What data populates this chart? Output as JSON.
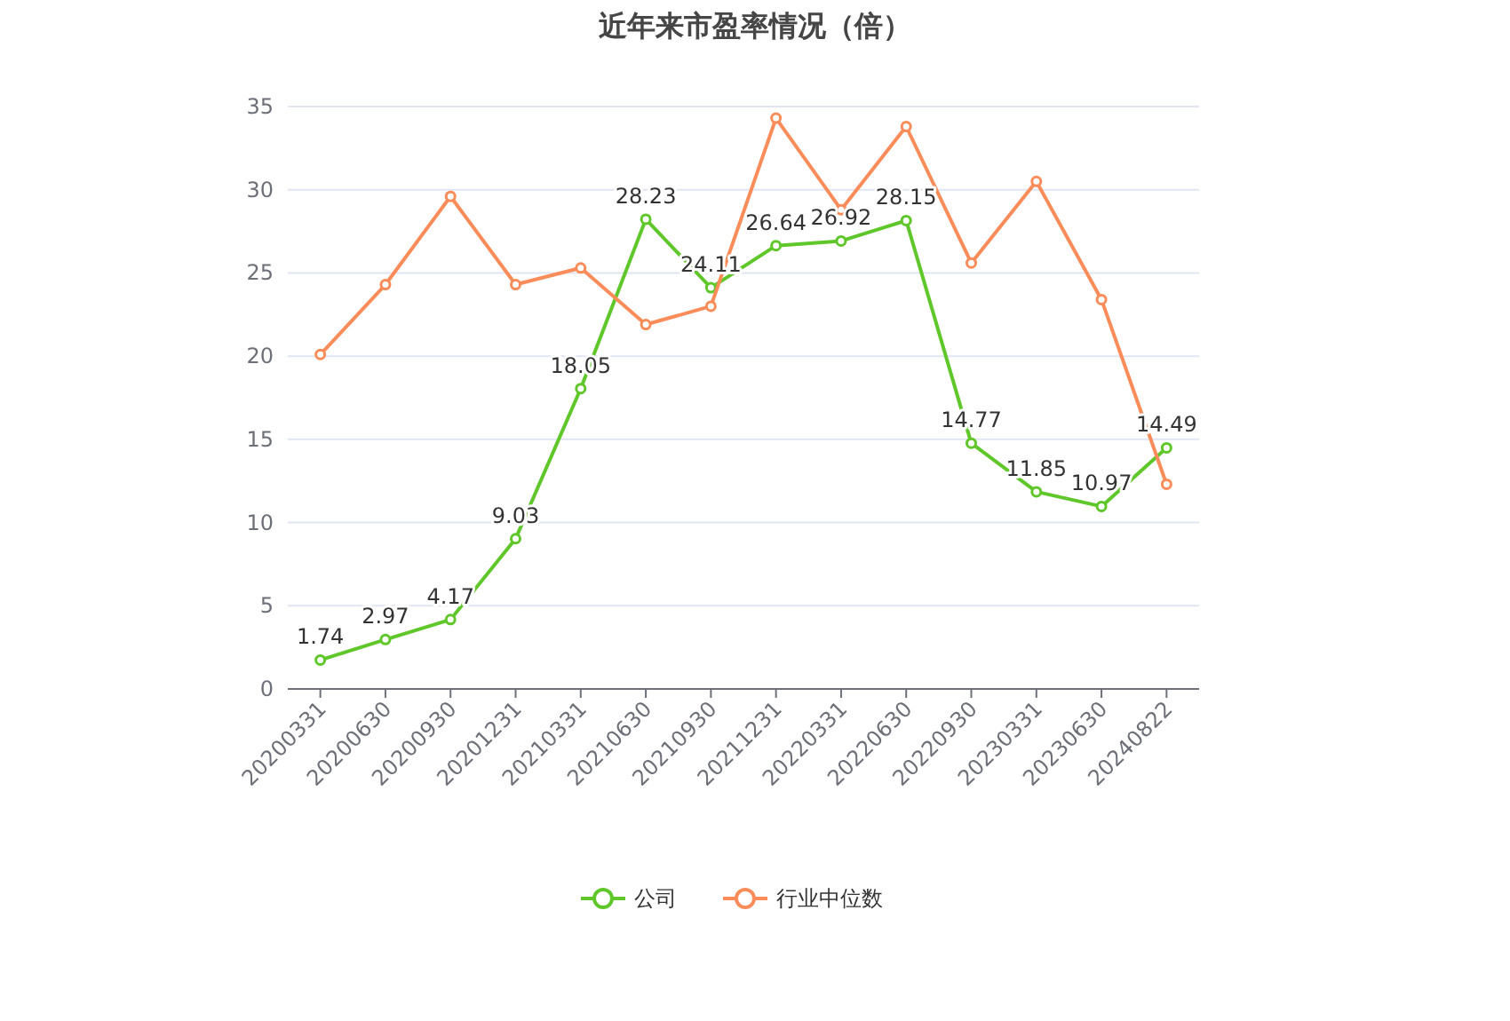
{
  "chart_data": {
    "type": "line",
    "title": "近年来市盈率情况（倍）",
    "categories": [
      "20200331",
      "20200630",
      "20200930",
      "20201231",
      "20210331",
      "20210630",
      "20210930",
      "20211231",
      "20220331",
      "20220630",
      "20220930",
      "20230331",
      "20230630",
      "20240822"
    ],
    "series": [
      {
        "name": "公司",
        "color": "#5fc72a",
        "values": [
          1.74,
          2.97,
          4.17,
          9.03,
          18.05,
          28.23,
          24.11,
          26.64,
          26.92,
          28.15,
          14.77,
          11.85,
          10.97,
          14.49
        ],
        "value_labels": [
          "1.74",
          "2.97",
          "4.17",
          "9.03",
          "18.05",
          "28.23",
          "24.11",
          "26.64",
          "26.92",
          "28.15",
          "14.77",
          "11.85",
          "10.97",
          "14.49"
        ]
      },
      {
        "name": "行业中位数",
        "color": "#fa8c5a",
        "values": [
          20.1,
          24.3,
          29.6,
          24.3,
          25.3,
          21.9,
          23.0,
          34.3,
          28.8,
          33.8,
          25.6,
          30.5,
          23.4,
          12.3
        ]
      }
    ],
    "ylim": [
      0,
      35
    ],
    "yticks": [
      0,
      5,
      10,
      15,
      20,
      25,
      30,
      35
    ],
    "grid": "y",
    "legend": "bottom",
    "marker": "circle",
    "line_style": "solid"
  }
}
